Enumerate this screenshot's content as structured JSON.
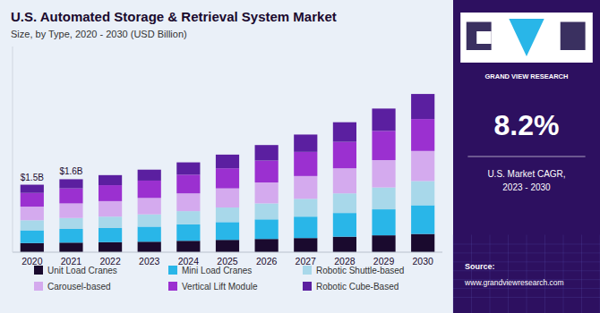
{
  "chart_data": {
    "type": "bar",
    "title": "U.S. Automated Storage & Retrieval System Market",
    "subtitle": "Size, by Type, 2020 - 2030 (USD Billion)",
    "categories": [
      "2020",
      "2021",
      "2022",
      "2023",
      "2024",
      "2025",
      "2026",
      "2027",
      "2028",
      "2029",
      "2030"
    ],
    "series": [
      {
        "name": "Unit Load Cranes",
        "color": "#1a0a2e",
        "values": [
          0.2,
          0.21,
          0.22,
          0.23,
          0.25,
          0.27,
          0.29,
          0.31,
          0.34,
          0.37,
          0.4
        ]
      },
      {
        "name": "Mini Load Cranes",
        "color": "#29b6e8",
        "values": [
          0.28,
          0.3,
          0.31,
          0.33,
          0.36,
          0.39,
          0.43,
          0.47,
          0.52,
          0.57,
          0.63
        ]
      },
      {
        "name": "Robotic Shuttle-based",
        "color": "#a8d8ea",
        "values": [
          0.22,
          0.24,
          0.25,
          0.27,
          0.29,
          0.32,
          0.35,
          0.39,
          0.43,
          0.48,
          0.53
        ]
      },
      {
        "name": "Carousel-based",
        "color": "#d4aaee",
        "values": [
          0.3,
          0.32,
          0.34,
          0.36,
          0.39,
          0.42,
          0.46,
          0.5,
          0.55,
          0.6,
          0.66
        ]
      },
      {
        "name": "Vertical Lift Module",
        "color": "#9b30d0",
        "values": [
          0.3,
          0.33,
          0.35,
          0.38,
          0.41,
          0.44,
          0.48,
          0.53,
          0.58,
          0.64,
          0.7
        ]
      },
      {
        "name": "Robotic Cube-Based",
        "color": "#5b1fa0",
        "values": [
          0.18,
          0.2,
          0.22,
          0.24,
          0.27,
          0.3,
          0.34,
          0.38,
          0.43,
          0.49,
          0.55
        ]
      }
    ],
    "stacked": true,
    "ylim": [
      0,
      4.511
    ],
    "tick_labels": "x",
    "grid": false,
    "legend": "bottom",
    "annotations": [
      {
        "category": "2020",
        "text": "$1.5B"
      },
      {
        "category": "2021",
        "text": "$1.6B"
      },
      {
        "text": "GRAND VIEW RESEARCH"
      },
      {
        "text": "8.2%"
      },
      {
        "text": "U.S. Market CAGR,\n2023 - 2030"
      },
      {
        "text": "Source:"
      },
      {
        "text": "www.grandviewresearch.com"
      }
    ]
  }
}
